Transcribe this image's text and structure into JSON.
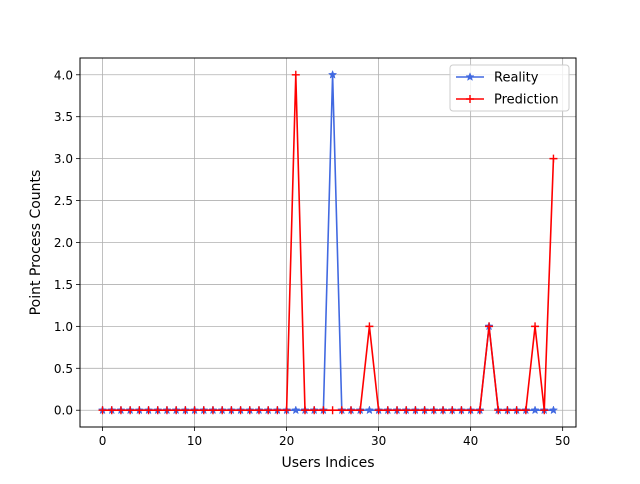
{
  "chart_data": {
    "type": "line",
    "title": "",
    "xlabel": "Users Indices",
    "ylabel": "Point Process Counts",
    "xlim": [
      -2.45,
      51.45
    ],
    "ylim": [
      -0.2,
      4.2
    ],
    "xticks": [
      0,
      10,
      20,
      30,
      40,
      50
    ],
    "yticks": [
      0.0,
      0.5,
      1.0,
      1.5,
      2.0,
      2.5,
      3.0,
      3.5,
      4.0
    ],
    "xtick_labels": [
      "0",
      "10",
      "20",
      "30",
      "40",
      "50"
    ],
    "ytick_labels": [
      "0.0",
      "0.5",
      "1.0",
      "1.5",
      "2.0",
      "2.5",
      "3.0",
      "3.5",
      "4.0"
    ],
    "grid": true,
    "legend_position": "top-right",
    "x": [
      0,
      1,
      2,
      3,
      4,
      5,
      6,
      7,
      8,
      9,
      10,
      11,
      12,
      13,
      14,
      15,
      16,
      17,
      18,
      19,
      20,
      21,
      22,
      23,
      24,
      25,
      26,
      27,
      28,
      29,
      30,
      31,
      32,
      33,
      34,
      35,
      36,
      37,
      38,
      39,
      40,
      41,
      42,
      43,
      44,
      45,
      46,
      47,
      48,
      49
    ],
    "series": [
      {
        "name": "Reality",
        "color": "#4169e1",
        "marker": "star",
        "values": [
          0,
          0,
          0,
          0,
          0,
          0,
          0,
          0,
          0,
          0,
          0,
          0,
          0,
          0,
          0,
          0,
          0,
          0,
          0,
          0,
          0,
          0,
          0,
          0,
          0,
          4,
          0,
          0,
          0,
          0,
          0,
          0,
          0,
          0,
          0,
          0,
          0,
          0,
          0,
          0,
          0,
          0,
          1,
          0,
          0,
          0,
          0,
          0,
          0,
          0
        ]
      },
      {
        "name": "Prediction",
        "color": "#ff0000",
        "marker": "plus",
        "values": [
          0,
          0,
          0,
          0,
          0,
          0,
          0,
          0,
          0,
          0,
          0,
          0,
          0,
          0,
          0,
          0,
          0,
          0,
          0,
          0,
          0,
          4,
          0,
          0,
          0,
          0,
          0,
          0,
          0,
          1,
          0,
          0,
          0,
          0,
          0,
          0,
          0,
          0,
          0,
          0,
          0,
          0,
          1,
          0,
          0,
          0,
          0,
          1,
          0,
          3
        ]
      }
    ]
  }
}
